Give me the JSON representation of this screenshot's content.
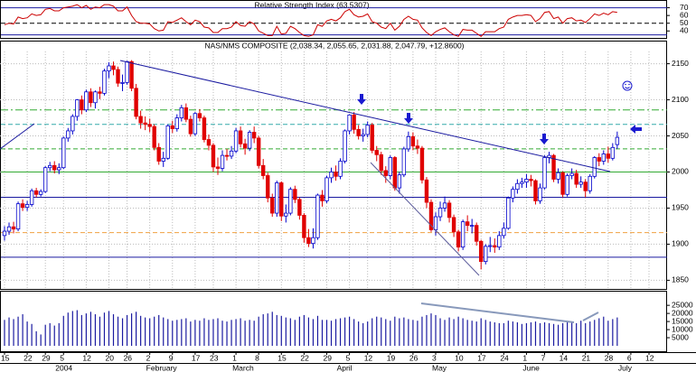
{
  "chart_data": {
    "type": "candlestick",
    "title": "NAS/NMS COMPOSITE (2,038.34, 2,055.65, 2,031.88, 2,047.79, +12.8600)",
    "categories": [
      "15",
      null,
      null,
      null,
      null,
      "22",
      null,
      null,
      null,
      "29",
      null,
      null,
      null,
      "5",
      null,
      null,
      null,
      null,
      "12",
      null,
      null,
      null,
      null,
      "20",
      null,
      null,
      null,
      "26",
      null,
      null,
      null,
      null,
      "2",
      null,
      null,
      null,
      null,
      "9",
      null,
      null,
      null,
      null,
      "17",
      null,
      null,
      null,
      "23",
      null,
      null,
      null,
      null,
      "1",
      null,
      null,
      null,
      null,
      "8",
      null,
      null,
      null,
      null,
      "15",
      null,
      null,
      null,
      null,
      "22",
      null,
      null,
      null,
      null,
      "29",
      null,
      null,
      null,
      null,
      "5",
      null,
      null,
      null,
      "12",
      null,
      null,
      null,
      null,
      "19",
      null,
      null,
      null,
      null,
      "26",
      null,
      null,
      null,
      null,
      "3",
      null,
      null,
      null,
      null,
      "10",
      null,
      null,
      null,
      null,
      "17",
      null,
      null,
      null,
      null,
      "24",
      null,
      null,
      null,
      null,
      "1",
      null,
      null,
      null,
      "7",
      null,
      null,
      null,
      "14",
      null,
      null,
      null,
      null,
      "21",
      null,
      null,
      null,
      null,
      "28",
      null,
      null,
      null,
      null,
      "6",
      null,
      null,
      null,
      "12"
    ],
    "months": [
      null,
      null,
      null,
      null,
      null,
      null,
      null,
      null,
      null,
      null,
      null,
      null,
      "2004",
      null,
      null,
      null,
      null,
      null,
      null,
      null,
      null,
      null,
      null,
      null,
      null,
      null,
      null,
      null,
      null,
      null,
      null,
      null,
      "February",
      null,
      null,
      null,
      null,
      null,
      null,
      null,
      null,
      null,
      null,
      null,
      null,
      null,
      null,
      null,
      null,
      null,
      null,
      "March",
      null,
      null,
      null,
      null,
      null,
      null,
      null,
      null,
      null,
      null,
      null,
      null,
      null,
      null,
      null,
      null,
      null,
      null,
      null,
      null,
      null,
      null,
      "April",
      null,
      null,
      null,
      null,
      null,
      null,
      null,
      null,
      null,
      null,
      null,
      null,
      null,
      null,
      null,
      null,
      null,
      null,
      null,
      null,
      "May",
      null,
      null,
      null,
      null,
      null,
      null,
      null,
      null,
      null,
      null,
      null,
      null,
      null,
      null,
      null,
      null,
      null,
      null,
      null,
      "June",
      null,
      null,
      null,
      null,
      null,
      null,
      null,
      null,
      null,
      null,
      null,
      null,
      null,
      null,
      null,
      null,
      null,
      null,
      null,
      null,
      "July",
      null,
      null,
      null,
      null,
      null,
      null
    ],
    "ohlc": [
      [
        1912,
        1925,
        1905,
        1918
      ],
      [
        1918,
        1930,
        1913,
        1924
      ],
      [
        1924,
        1931,
        1915,
        1921
      ],
      [
        1921,
        1959,
        1918,
        1956
      ],
      [
        1956,
        1962,
        1946,
        1951
      ],
      [
        1951,
        1960,
        1946,
        1955
      ],
      [
        1955,
        1977,
        1952,
        1974
      ],
      [
        1974,
        1978,
        1965,
        1969
      ],
      [
        1969,
        1976,
        1966,
        1973
      ],
      [
        1973,
        2008,
        1971,
        2006
      ],
      [
        2006,
        2014,
        2001,
        2009
      ],
      [
        2009,
        2015,
        1998,
        2003
      ],
      [
        2003,
        2012,
        1997,
        2006
      ],
      [
        2006,
        2049,
        2004,
        2047
      ],
      [
        2047,
        2061,
        2042,
        2057
      ],
      [
        2057,
        2080,
        2052,
        2077
      ],
      [
        2077,
        2101,
        2071,
        2100
      ],
      [
        2100,
        2106,
        2080,
        2086
      ],
      [
        2086,
        2114,
        2083,
        2111
      ],
      [
        2111,
        2116,
        2090,
        2096
      ],
      [
        2096,
        2113,
        2088,
        2111
      ],
      [
        2111,
        2118,
        2101,
        2109
      ],
      [
        2109,
        2143,
        2106,
        2140
      ],
      [
        2140,
        2152,
        2130,
        2147
      ],
      [
        2147,
        2153,
        2134,
        2142
      ],
      [
        2142,
        2146,
        2118,
        2123
      ],
      [
        2123,
        2135,
        2112,
        2124
      ],
      [
        2124,
        2154,
        2121,
        2153
      ],
      [
        2153,
        2155,
        2112,
        2116
      ],
      [
        2116,
        2122,
        2073,
        2077
      ],
      [
        2077,
        2085,
        2060,
        2068
      ],
      [
        2068,
        2077,
        2058,
        2066
      ],
      [
        2066,
        2074,
        2055,
        2063
      ],
      [
        2063,
        2066,
        2030,
        2034
      ],
      [
        2034,
        2040,
        2010,
        2015
      ],
      [
        2015,
        2028,
        2007,
        2019
      ],
      [
        2019,
        2066,
        2017,
        2064
      ],
      [
        2064,
        2071,
        2054,
        2060
      ],
      [
        2060,
        2080,
        2056,
        2075
      ],
      [
        2075,
        2093,
        2070,
        2089
      ],
      [
        2089,
        2095,
        2069,
        2073
      ],
      [
        2073,
        2078,
        2049,
        2053
      ],
      [
        2053,
        2083,
        2050,
        2081
      ],
      [
        2081,
        2087,
        2070,
        2075
      ],
      [
        2075,
        2078,
        2041,
        2045
      ],
      [
        2045,
        2052,
        2030,
        2037
      ],
      [
        2037,
        2040,
        2000,
        2007
      ],
      [
        2007,
        2020,
        1996,
        2005
      ],
      [
        2005,
        2030,
        2001,
        2023
      ],
      [
        2023,
        2032,
        2016,
        2022
      ],
      [
        2022,
        2036,
        2018,
        2029
      ],
      [
        2029,
        2061,
        2026,
        2057
      ],
      [
        2057,
        2063,
        2034,
        2039
      ],
      [
        2039,
        2046,
        2024,
        2033
      ],
      [
        2033,
        2058,
        2029,
        2055
      ],
      [
        2055,
        2063,
        2040,
        2047
      ],
      [
        2047,
        2050,
        2005,
        2009
      ],
      [
        2009,
        2018,
        1990,
        1995
      ],
      [
        1995,
        1999,
        1958,
        1964
      ],
      [
        1964,
        1970,
        1938,
        1943
      ],
      [
        1943,
        1988,
        1938,
        1985
      ],
      [
        1985,
        1987,
        1932,
        1939
      ],
      [
        1939,
        1955,
        1930,
        1943
      ],
      [
        1943,
        1979,
        1940,
        1976
      ],
      [
        1976,
        1981,
        1957,
        1962
      ],
      [
        1962,
        1965,
        1934,
        1940
      ],
      [
        1940,
        1943,
        1902,
        1909
      ],
      [
        1909,
        1921,
        1896,
        1901
      ],
      [
        1901,
        1922,
        1894,
        1909
      ],
      [
        1909,
        1970,
        1906,
        1968
      ],
      [
        1968,
        1975,
        1952,
        1960
      ],
      [
        1960,
        1995,
        1957,
        1992
      ],
      [
        1992,
        2006,
        1985,
        2000
      ],
      [
        2000,
        2009,
        1988,
        1994
      ],
      [
        1994,
        2019,
        1990,
        2015
      ],
      [
        2015,
        2059,
        2012,
        2057
      ],
      [
        2057,
        2080,
        2052,
        2079
      ],
      [
        2079,
        2083,
        2053,
        2059
      ],
      [
        2059,
        2065,
        2045,
        2050
      ],
      [
        2050,
        2060,
        2042,
        2052
      ],
      [
        2052,
        2070,
        2048,
        2065
      ],
      [
        2065,
        2068,
        2026,
        2030
      ],
      [
        2030,
        2036,
        2015,
        2024
      ],
      [
        2024,
        2028,
        1996,
        2002
      ],
      [
        2002,
        2008,
        1985,
        1995
      ],
      [
        1995,
        2023,
        1990,
        2020
      ],
      [
        2020,
        2022,
        1974,
        1978
      ],
      [
        1978,
        2000,
        1970,
        1996
      ],
      [
        1996,
        2035,
        1993,
        2032
      ],
      [
        2032,
        2056,
        2028,
        2049
      ],
      [
        2049,
        2055,
        2030,
        2036
      ],
      [
        2036,
        2045,
        2025,
        2033
      ],
      [
        2033,
        2036,
        1984,
        1989
      ],
      [
        1989,
        1993,
        1950,
        1958
      ],
      [
        1958,
        1962,
        1917,
        1920
      ],
      [
        1920,
        1944,
        1912,
        1938
      ],
      [
        1938,
        1959,
        1932,
        1950
      ],
      [
        1950,
        1966,
        1945,
        1957
      ],
      [
        1957,
        1961,
        1930,
        1937
      ],
      [
        1937,
        1941,
        1910,
        1917
      ],
      [
        1917,
        1920,
        1890,
        1896
      ],
      [
        1896,
        1934,
        1892,
        1931
      ],
      [
        1931,
        1940,
        1918,
        1926
      ],
      [
        1926,
        1935,
        1915,
        1926
      ],
      [
        1926,
        1930,
        1898,
        1904
      ],
      [
        1904,
        1906,
        1865,
        1876
      ],
      [
        1876,
        1900,
        1872,
        1897
      ],
      [
        1897,
        1910,
        1889,
        1898
      ],
      [
        1898,
        1908,
        1888,
        1896
      ],
      [
        1896,
        1918,
        1892,
        1912
      ],
      [
        1912,
        1930,
        1908,
        1922
      ],
      [
        1922,
        1966,
        1920,
        1964
      ],
      [
        1964,
        1980,
        1958,
        1976
      ],
      [
        1976,
        1990,
        1970,
        1984
      ],
      [
        1984,
        1992,
        1978,
        1986
      ],
      [
        1986,
        1997,
        1978,
        1990
      ],
      [
        1990,
        1996,
        1980,
        1988
      ],
      [
        1988,
        1990,
        1955,
        1960
      ],
      [
        1960,
        1984,
        1956,
        1978
      ],
      [
        1978,
        2023,
        1976,
        2020
      ],
      [
        2020,
        2028,
        2012,
        2023
      ],
      [
        2023,
        2025,
        1986,
        1990
      ],
      [
        1990,
        2005,
        1984,
        1999
      ],
      [
        1999,
        2001,
        1965,
        1969
      ],
      [
        1969,
        1998,
        1966,
        1995
      ],
      [
        1995,
        2005,
        1990,
        1998
      ],
      [
        1998,
        2003,
        1978,
        1983
      ],
      [
        1983,
        1994,
        1978,
        1986
      ],
      [
        1986,
        1990,
        1965,
        1974
      ],
      [
        1974,
        1997,
        1970,
        1994
      ],
      [
        1994,
        2022,
        1991,
        2020
      ],
      [
        2020,
        2026,
        2008,
        2015
      ],
      [
        2015,
        2030,
        2010,
        2025
      ],
      [
        2025,
        2035,
        2013,
        2019
      ],
      [
        2019,
        2040,
        2016,
        2034
      ],
      [
        2038,
        2056,
        2032,
        2048
      ],
      null,
      null,
      null,
      null,
      null,
      null,
      null
    ],
    "up_color": "#0000cc",
    "down_color": "#e00000",
    "ylim": [
      1838,
      2182
    ],
    "yticks": [
      2150,
      2100,
      2050,
      2000,
      1950,
      1900,
      1850
    ],
    "grid": true,
    "levels": [
      {
        "value": 2086,
        "color": "#33aa33",
        "dash": "dashdot"
      },
      {
        "value": 2066,
        "color": "#33aaaa",
        "dash": "dashed"
      },
      {
        "value": 2032,
        "color": "#33aa33",
        "dash": "dashed"
      },
      {
        "value": 2000,
        "color": "#33aa33",
        "dash": "solid"
      },
      {
        "value": 1965,
        "color": "#1a1aa0",
        "dash": "solid"
      },
      {
        "value": 1916,
        "color": "#f0a040",
        "dash": "dashed"
      },
      {
        "value": 1882,
        "color": "#1a1aa0",
        "dash": "solid"
      }
    ],
    "rsi": {
      "title": "Relative Strength Index (63.5307)",
      "color": "#cc0000",
      "values": [
        48,
        50,
        49,
        58,
        56,
        57,
        62,
        60,
        61,
        68,
        69,
        66,
        66,
        70,
        71,
        72,
        74,
        70,
        73,
        68,
        71,
        70,
        74,
        74,
        72,
        66,
        66,
        71,
        60,
        52,
        50,
        50,
        49,
        43,
        40,
        41,
        52,
        51,
        54,
        57,
        52,
        48,
        54,
        52,
        45,
        44,
        38,
        38,
        43,
        43,
        45,
        52,
        47,
        46,
        52,
        49,
        40,
        37,
        34,
        34,
        46,
        36,
        37,
        46,
        43,
        38,
        34,
        33,
        35,
        48,
        46,
        53,
        55,
        53,
        57,
        65,
        68,
        61,
        58,
        59,
        62,
        52,
        50,
        45,
        43,
        50,
        41,
        46,
        55,
        59,
        55,
        54,
        44,
        38,
        34,
        39,
        42,
        44,
        39,
        35,
        33,
        42,
        41,
        41,
        37,
        33,
        39,
        39,
        39,
        43,
        45,
        55,
        58,
        60,
        60,
        61,
        60,
        52,
        56,
        64,
        65,
        56,
        58,
        50,
        56,
        57,
        53,
        54,
        51,
        56,
        62,
        60,
        63,
        61,
        65,
        64,
        null,
        null,
        null,
        null,
        null,
        null,
        null
      ],
      "ylim": [
        31,
        80
      ],
      "yticks": [
        70,
        60,
        50,
        40
      ],
      "levels": [
        {
          "value": 70,
          "color": "#1a1aa0",
          "dash": "solid"
        },
        {
          "value": 50,
          "color": "#000000",
          "dash": "dashed"
        },
        {
          "value": 35,
          "color": "#1a1aa0",
          "dash": "solid"
        }
      ]
    },
    "volume": {
      "color": "#1a1aa0",
      "values": [
        16000,
        17500,
        16500,
        18000,
        19500,
        15000,
        13500,
        9000,
        7000,
        13000,
        14000,
        12500,
        14000,
        18500,
        20500,
        21500,
        22000,
        19000,
        20000,
        21000,
        19500,
        18000,
        20500,
        21500,
        19500,
        18000,
        17000,
        19000,
        20000,
        21000,
        18500,
        17500,
        17000,
        18000,
        19000,
        17500,
        16500,
        15500,
        16000,
        16500,
        17000,
        15000,
        16000,
        15500,
        17000,
        16000,
        16500,
        17000,
        15500,
        15000,
        16000,
        16500,
        17000,
        15500,
        16000,
        15500,
        18000,
        19500,
        20000,
        21000,
        19000,
        18500,
        17500,
        17000,
        16000,
        18000,
        19000,
        17500,
        16500,
        18500,
        16000,
        16000,
        15500,
        16500,
        17000,
        17500,
        18000,
        16500,
        15000,
        14000,
        15000,
        17000,
        18000,
        17500,
        16500,
        15500,
        18000,
        17000,
        17500,
        16500,
        16000,
        15500,
        18000,
        19000,
        20000,
        19000,
        17000,
        16000,
        17500,
        16500,
        18000,
        17000,
        16000,
        15500,
        15000,
        17000,
        16000,
        15000,
        14500,
        14000,
        14000,
        15500,
        15000,
        14500,
        13500,
        14000,
        14500,
        15000,
        14000,
        14500,
        14000,
        13500,
        13000,
        14000,
        15000,
        14500,
        14000,
        15500,
        14000,
        15000,
        16000,
        17000,
        18000,
        15500,
        16500,
        17500,
        null,
        null,
        null,
        null,
        null,
        null,
        null
      ],
      "ylim": [
        0,
        34000
      ],
      "yticks": [
        25000,
        20000,
        15000,
        10000,
        5000
      ]
    }
  }
}
